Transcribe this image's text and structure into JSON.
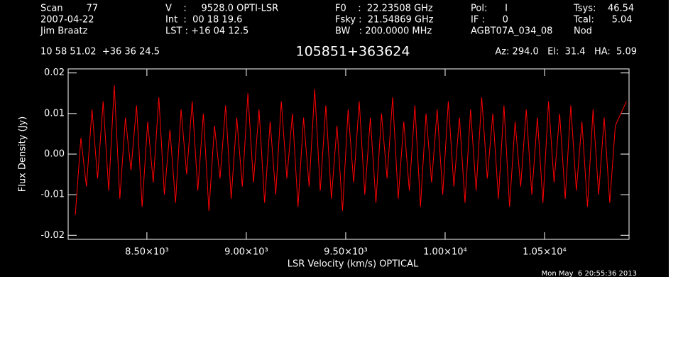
{
  "chart_data": {
    "type": "line",
    "title": "105851+363624",
    "header": [
      [
        "Scan        77",
        "2007-04-22",
        "Jim Braatz"
      ],
      [
        "V    :     9528.0 OPTI-LSR",
        "Int  :  00 18 19.6",
        "LST : +16 04 12.5"
      ],
      [
        "F0    :  22.23508 GHz",
        "Fsky :  21.54869 GHz",
        "BW   : 200.0000 MHz"
      ],
      [
        "Pol:      I",
        "IF :      0",
        "AGBT07A_034_08"
      ],
      [
        "Tsys:    46.54",
        "Tcal:      5.04",
        "Nod"
      ]
    ],
    "position": "10 58 51.02  +36 36 24.5",
    "pointing": "Az: 294.0   El:  31.4   HA:  5.09",
    "timestamp": "Mon May  6 20:55:36 2013",
    "xlabel": "LSR Velocity (km/s) OPTICAL",
    "ylabel": "Flux Density (Jy)",
    "xlim": [
      8104,
      10925
    ],
    "ylim": [
      -0.021,
      0.021
    ],
    "xticks": [
      {
        "value": 8500,
        "label": "8.50×10³"
      },
      {
        "value": 9000,
        "label": "9.00×10³"
      },
      {
        "value": 9500,
        "label": "9.50×10³"
      },
      {
        "value": 10000,
        "label": "1.00×10⁴"
      },
      {
        "value": 10500,
        "label": "1.05×10⁴"
      }
    ],
    "yticks": [
      -0.02,
      -0.01,
      {
        "value": 0,
        "label": "0.00"
      },
      0.01,
      0.02
    ],
    "series": [
      {
        "color": "#ff0000",
        "x": [
          8140,
          8168,
          8196,
          8224,
          8252,
          8280,
          8308,
          8336,
          8364,
          8392,
          8420,
          8448,
          8476,
          8504,
          8532,
          8560,
          8588,
          8616,
          8644,
          8672,
          8700,
          8728,
          8756,
          8784,
          8812,
          8840,
          8868,
          8896,
          8924,
          8952,
          8980,
          9008,
          9036,
          9064,
          9092,
          9120,
          9148,
          9176,
          9204,
          9232,
          9260,
          9288,
          9316,
          9344,
          9372,
          9400,
          9428,
          9456,
          9484,
          9512,
          9540,
          9568,
          9596,
          9624,
          9652,
          9680,
          9708,
          9736,
          9764,
          9792,
          9820,
          9848,
          9876,
          9904,
          9932,
          9960,
          9988,
          10016,
          10044,
          10072,
          10100,
          10128,
          10156,
          10184,
          10212,
          10240,
          10268,
          10296,
          10324,
          10352,
          10380,
          10408,
          10436,
          10464,
          10492,
          10520,
          10548,
          10576,
          10604,
          10632,
          10660,
          10688,
          10716,
          10744,
          10772,
          10800,
          10828,
          10856,
          10884,
          10912
        ],
        "values": [
          -0.015,
          0.004,
          -0.008,
          0.011,
          -0.006,
          0.013,
          -0.009,
          0.017,
          -0.011,
          0.009,
          -0.004,
          0.012,
          -0.013,
          0.008,
          -0.007,
          0.014,
          -0.01,
          0.006,
          -0.012,
          0.011,
          -0.005,
          0.013,
          -0.009,
          0.01,
          -0.014,
          0.007,
          -0.006,
          0.012,
          -0.011,
          0.009,
          -0.008,
          0.015,
          -0.007,
          0.011,
          -0.012,
          0.008,
          -0.01,
          0.013,
          -0.006,
          0.01,
          -0.013,
          0.009,
          -0.008,
          0.016,
          -0.009,
          0.012,
          -0.011,
          0.007,
          -0.014,
          0.011,
          -0.007,
          0.013,
          -0.01,
          0.009,
          -0.012,
          0.01,
          -0.006,
          0.014,
          -0.011,
          0.008,
          -0.009,
          0.012,
          -0.013,
          0.01,
          -0.007,
          0.011,
          -0.01,
          0.013,
          -0.008,
          0.009,
          -0.012,
          0.011,
          -0.009,
          0.014,
          -0.006,
          0.01,
          -0.011,
          0.012,
          -0.013,
          0.008,
          -0.008,
          0.011,
          -0.01,
          0.009,
          -0.012,
          0.013,
          -0.007,
          0.01,
          -0.011,
          0.012,
          -0.009,
          0.008,
          -0.013,
          0.011,
          -0.01,
          0.009,
          -0.012,
          0.007,
          0.01,
          0.013
        ]
      }
    ]
  }
}
